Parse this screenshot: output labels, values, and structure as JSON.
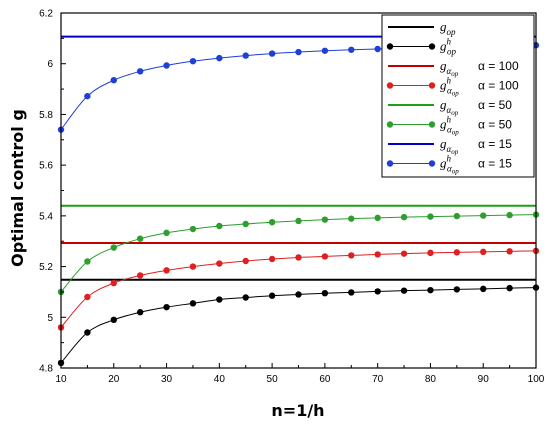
{
  "chart_data": {
    "type": "line",
    "xlabel": "n=1/h",
    "ylabel": "Optimal control g",
    "xlim": [
      10,
      100
    ],
    "ylim": [
      4.8,
      6.2
    ],
    "xticks": [
      10,
      20,
      30,
      40,
      50,
      60,
      70,
      80,
      90,
      100
    ],
    "yticks": [
      4.8,
      5.0,
      5.2,
      5.4,
      5.6,
      5.8,
      6.0,
      6.2
    ],
    "ytick_labels": [
      "4.8",
      "5",
      "5.2",
      "5.4",
      "5.6",
      "5.8",
      "6",
      "6.2"
    ],
    "grid": false,
    "legend_position": "top-right",
    "series": [
      {
        "key": "g_op",
        "legend_main": "g",
        "legend_sub": "op",
        "legend_sup": "",
        "legend_alpha": "",
        "color": "#000000",
        "style": "line",
        "x": [
          10,
          100
        ],
        "y": [
          5.148,
          5.148
        ]
      },
      {
        "key": "g_op_h",
        "legend_main": "g",
        "legend_sub": "op",
        "legend_sup": "h",
        "legend_alpha": "",
        "color": "#000000",
        "style": "markers",
        "x": [
          10,
          15,
          20,
          25,
          30,
          35,
          40,
          45,
          50,
          55,
          60,
          65,
          70,
          75,
          80,
          85,
          90,
          95,
          100
        ],
        "y": [
          4.82,
          4.94,
          4.99,
          5.02,
          5.04,
          5.055,
          5.07,
          5.078,
          5.085,
          5.09,
          5.095,
          5.098,
          5.102,
          5.105,
          5.107,
          5.11,
          5.112,
          5.115,
          5.117
        ]
      },
      {
        "key": "g_alpha_op_100",
        "legend_main": "g",
        "legend_sub": "α",
        "legend_subsub": "op",
        "legend_sup": "",
        "legend_alpha": "α = 100",
        "color": "#c00000",
        "style": "line",
        "x": [
          10,
          100
        ],
        "y": [
          5.293,
          5.293
        ]
      },
      {
        "key": "g_alpha_op_h_100",
        "legend_main": "g",
        "legend_sub": "α",
        "legend_subsub": "op",
        "legend_sup": "h",
        "legend_alpha": "α = 100",
        "color": "#e02020",
        "style": "markers",
        "x": [
          10,
          15,
          20,
          25,
          30,
          35,
          40,
          45,
          50,
          55,
          60,
          65,
          70,
          75,
          80,
          85,
          90,
          95,
          100
        ],
        "y": [
          4.96,
          5.08,
          5.135,
          5.165,
          5.185,
          5.2,
          5.212,
          5.222,
          5.23,
          5.236,
          5.24,
          5.244,
          5.248,
          5.251,
          5.254,
          5.256,
          5.258,
          5.26,
          5.262
        ]
      },
      {
        "key": "g_alpha_op_50",
        "legend_main": "g",
        "legend_sub": "α",
        "legend_subsub": "op",
        "legend_sup": "",
        "legend_alpha": "α = 50",
        "color": "#1aa01a",
        "style": "line",
        "x": [
          10,
          100
        ],
        "y": [
          5.44,
          5.44
        ]
      },
      {
        "key": "g_alpha_op_h_50",
        "legend_main": "g",
        "legend_sub": "α",
        "legend_subsub": "op",
        "legend_sup": "h",
        "legend_alpha": "α = 50",
        "color": "#2e9e2e",
        "style": "markers",
        "x": [
          10,
          15,
          20,
          25,
          30,
          35,
          40,
          45,
          50,
          55,
          60,
          65,
          70,
          75,
          80,
          85,
          90,
          95,
          100
        ],
        "y": [
          5.1,
          5.22,
          5.275,
          5.31,
          5.333,
          5.348,
          5.36,
          5.368,
          5.375,
          5.38,
          5.385,
          5.389,
          5.392,
          5.395,
          5.397,
          5.399,
          5.401,
          5.403,
          5.405
        ]
      },
      {
        "key": "g_alpha_op_15",
        "legend_main": "g",
        "legend_sub": "α",
        "legend_subsub": "op",
        "legend_sup": "",
        "legend_alpha": "α = 15",
        "color": "#0000c8",
        "style": "line",
        "x": [
          10,
          100
        ],
        "y": [
          6.107,
          6.107
        ]
      },
      {
        "key": "g_alpha_op_h_15",
        "legend_main": "g",
        "legend_sub": "α",
        "legend_subsub": "op",
        "legend_sup": "h",
        "legend_alpha": "α = 15",
        "color": "#1f3fd8",
        "style": "markers",
        "x": [
          10,
          15,
          20,
          25,
          30,
          35,
          40,
          45,
          50,
          55,
          60,
          65,
          70,
          75,
          80,
          85,
          90,
          95,
          100
        ],
        "y": [
          5.74,
          5.872,
          5.935,
          5.97,
          5.993,
          6.01,
          6.022,
          6.032,
          6.04,
          6.046,
          6.051,
          6.055,
          6.058,
          6.061,
          6.064,
          6.067,
          6.069,
          6.071,
          6.073
        ]
      }
    ]
  }
}
